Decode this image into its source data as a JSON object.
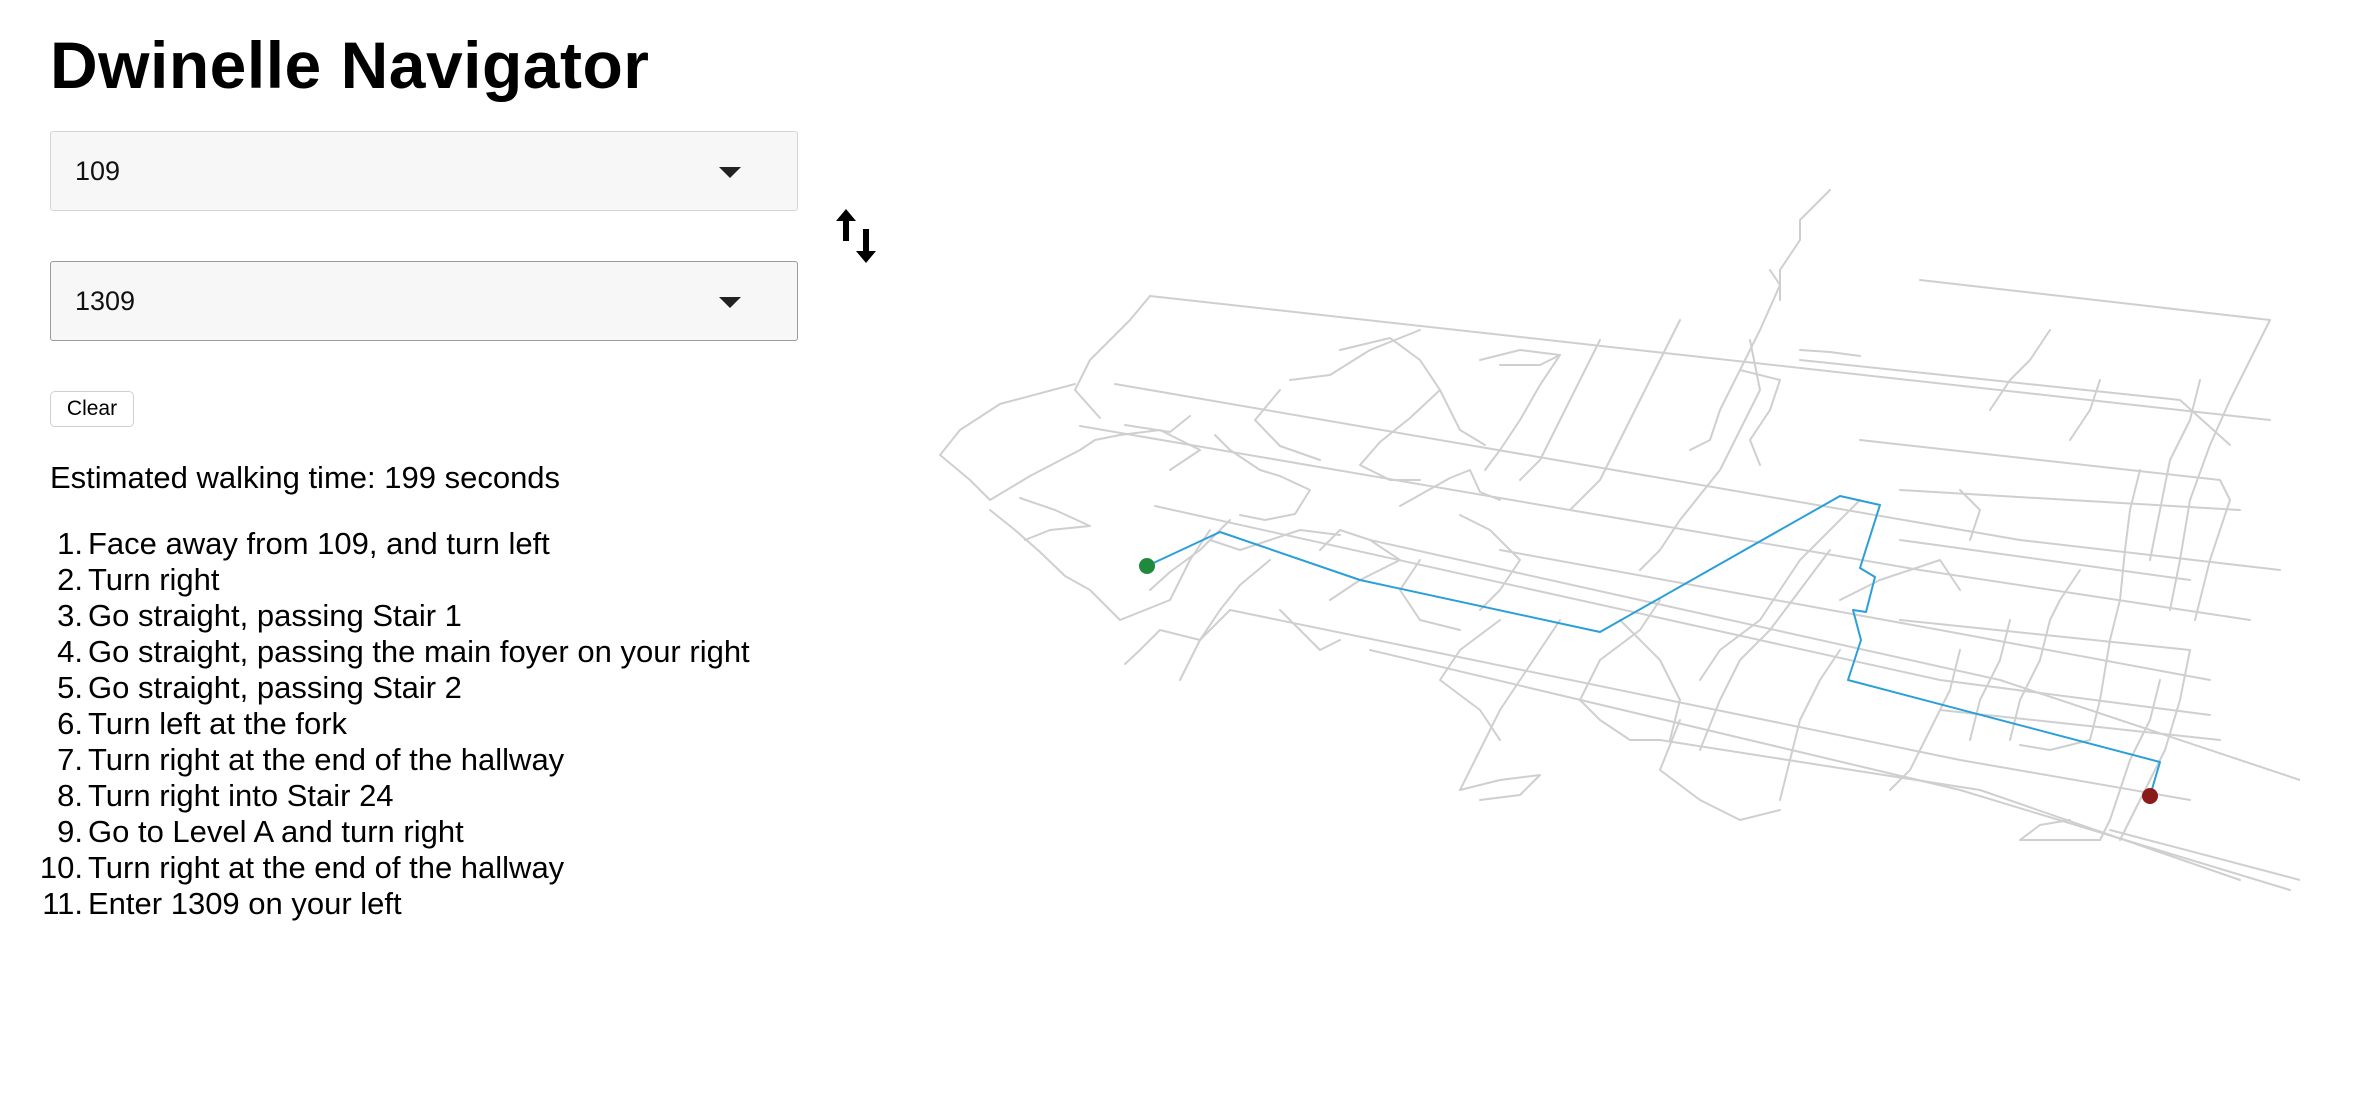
{
  "app": {
    "title": "Dwinelle Navigator"
  },
  "route": {
    "from": "109",
    "to": "1309",
    "swap_icon": "swap-vertical-arrows-icon",
    "clear_label": "Clear"
  },
  "summary": {
    "label": "Estimated walking time: ",
    "value": "199",
    "unit": " seconds"
  },
  "directions": [
    {
      "num": "1.",
      "text": "Face away from 109, and turn left"
    },
    {
      "num": "2.",
      "text": "Turn right"
    },
    {
      "num": "3.",
      "text": "Go straight, passing Stair 1"
    },
    {
      "num": "4.",
      "text": "Go straight, passing the main foyer on your right"
    },
    {
      "num": "5.",
      "text": "Go straight, passing Stair 2"
    },
    {
      "num": "6.",
      "text": "Turn left at the fork"
    },
    {
      "num": "7.",
      "text": "Turn right at the end of the hallway"
    },
    {
      "num": "8.",
      "text": "Turn right into Stair 24"
    },
    {
      "num": "9.",
      "text": "Go to Level A and turn right"
    },
    {
      "num": "10.",
      "text": "Turn right at the end of the hallway"
    },
    {
      "num": "11.",
      "text": "Enter 1309 on your left"
    }
  ],
  "map": {
    "colors": {
      "corridor": "#cfcfcf",
      "route": "#2b9fd8",
      "start": "#1f8a3c",
      "end": "#8b1a1a"
    },
    "start_marker_icon": "start-dot-icon",
    "end_marker_icon": "end-dot-icon"
  }
}
